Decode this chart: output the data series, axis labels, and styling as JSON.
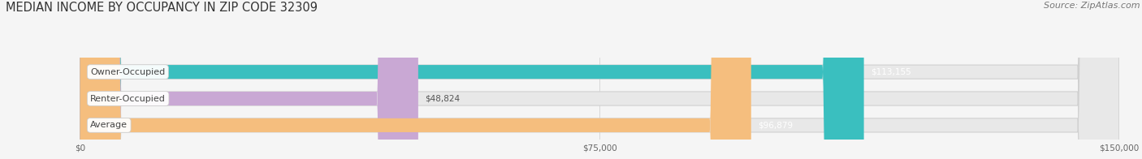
{
  "title": "MEDIAN INCOME BY OCCUPANCY IN ZIP CODE 32309",
  "source": "Source: ZipAtlas.com",
  "categories": [
    "Owner-Occupied",
    "Renter-Occupied",
    "Average"
  ],
  "values": [
    113155,
    48824,
    96879
  ],
  "labels": [
    "$113,155",
    "$48,824",
    "$96,879"
  ],
  "bar_colors": [
    "#3abfbf",
    "#c9a8d4",
    "#f5be7e"
  ],
  "bar_bg_colors": [
    "#ebebeb",
    "#ebebeb",
    "#ebebeb"
  ],
  "xlim": [
    0,
    150000
  ],
  "xticks": [
    0,
    75000,
    150000
  ],
  "xticklabels": [
    "$0",
    "$75,000",
    "$150,000"
  ],
  "title_fontsize": 10.5,
  "source_fontsize": 8,
  "label_fontsize": 7.5,
  "cat_fontsize": 8,
  "bar_height": 0.52,
  "figsize": [
    14.06,
    1.96
  ],
  "dpi": 100,
  "bg_color": "#f5f5f5"
}
